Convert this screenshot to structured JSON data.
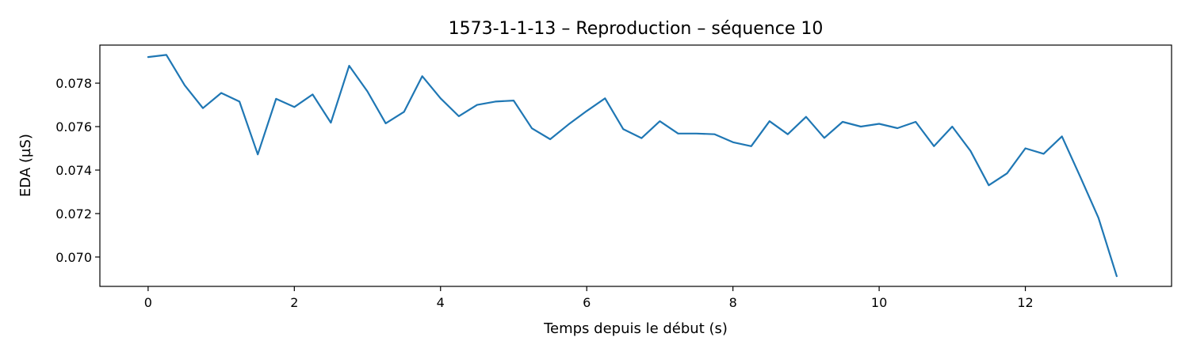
{
  "chart_data": {
    "type": "line",
    "title": "1573-1-1-13 – Reproduction – séquence 10",
    "xlabel": "Temps depuis le début (s)",
    "ylabel": "EDA (µS)",
    "xlim": [
      -0.66,
      14.0
    ],
    "ylim": [
      0.06865,
      0.07975
    ],
    "xticks": [
      0,
      2,
      4,
      6,
      8,
      10,
      12
    ],
    "xtick_labels": [
      "0",
      "2",
      "4",
      "6",
      "8",
      "10",
      "12"
    ],
    "yticks": [
      0.07,
      0.072,
      0.074,
      0.076,
      0.078
    ],
    "ytick_labels": [
      "0.070",
      "0.072",
      "0.074",
      "0.076",
      "0.078"
    ],
    "grid": false,
    "series": [
      {
        "color": "#1f77b4",
        "x": [
          0,
          0.25,
          0.5,
          0.75,
          1.0,
          1.25,
          1.5,
          1.75,
          2.0,
          2.25,
          2.5,
          2.75,
          3.0,
          3.25,
          3.5,
          3.75,
          4.0,
          4.25,
          4.5,
          4.75,
          5.0,
          5.25,
          5.5,
          5.75,
          6.0,
          6.25,
          6.5,
          6.75,
          7.0,
          7.25,
          7.5,
          7.75,
          8.0,
          8.25,
          8.5,
          8.75,
          9.0,
          9.25,
          9.5,
          9.75,
          10.0,
          10.25,
          10.5,
          10.75,
          11.0,
          11.25,
          11.5,
          11.75,
          12.0,
          12.25,
          12.5,
          12.75,
          13.0,
          13.25
        ],
        "y": [
          0.0792,
          0.0793,
          0.0779,
          0.07685,
          0.07755,
          0.07715,
          0.07472,
          0.07728,
          0.0769,
          0.07748,
          0.07618,
          0.0788,
          0.07762,
          0.07615,
          0.07668,
          0.07832,
          0.0773,
          0.07648,
          0.077,
          0.07715,
          0.0772,
          0.07592,
          0.07542,
          0.0761,
          0.07672,
          0.0773,
          0.07588,
          0.07547,
          0.07625,
          0.07568,
          0.07568,
          0.07565,
          0.07528,
          0.0751,
          0.07625,
          0.07565,
          0.07645,
          0.07548,
          0.07622,
          0.076,
          0.07613,
          0.07593,
          0.07622,
          0.0751,
          0.076,
          0.07488,
          0.0733,
          0.07385,
          0.075,
          0.07475,
          0.07555,
          0.0737,
          0.0718,
          0.06912
        ]
      }
    ]
  }
}
